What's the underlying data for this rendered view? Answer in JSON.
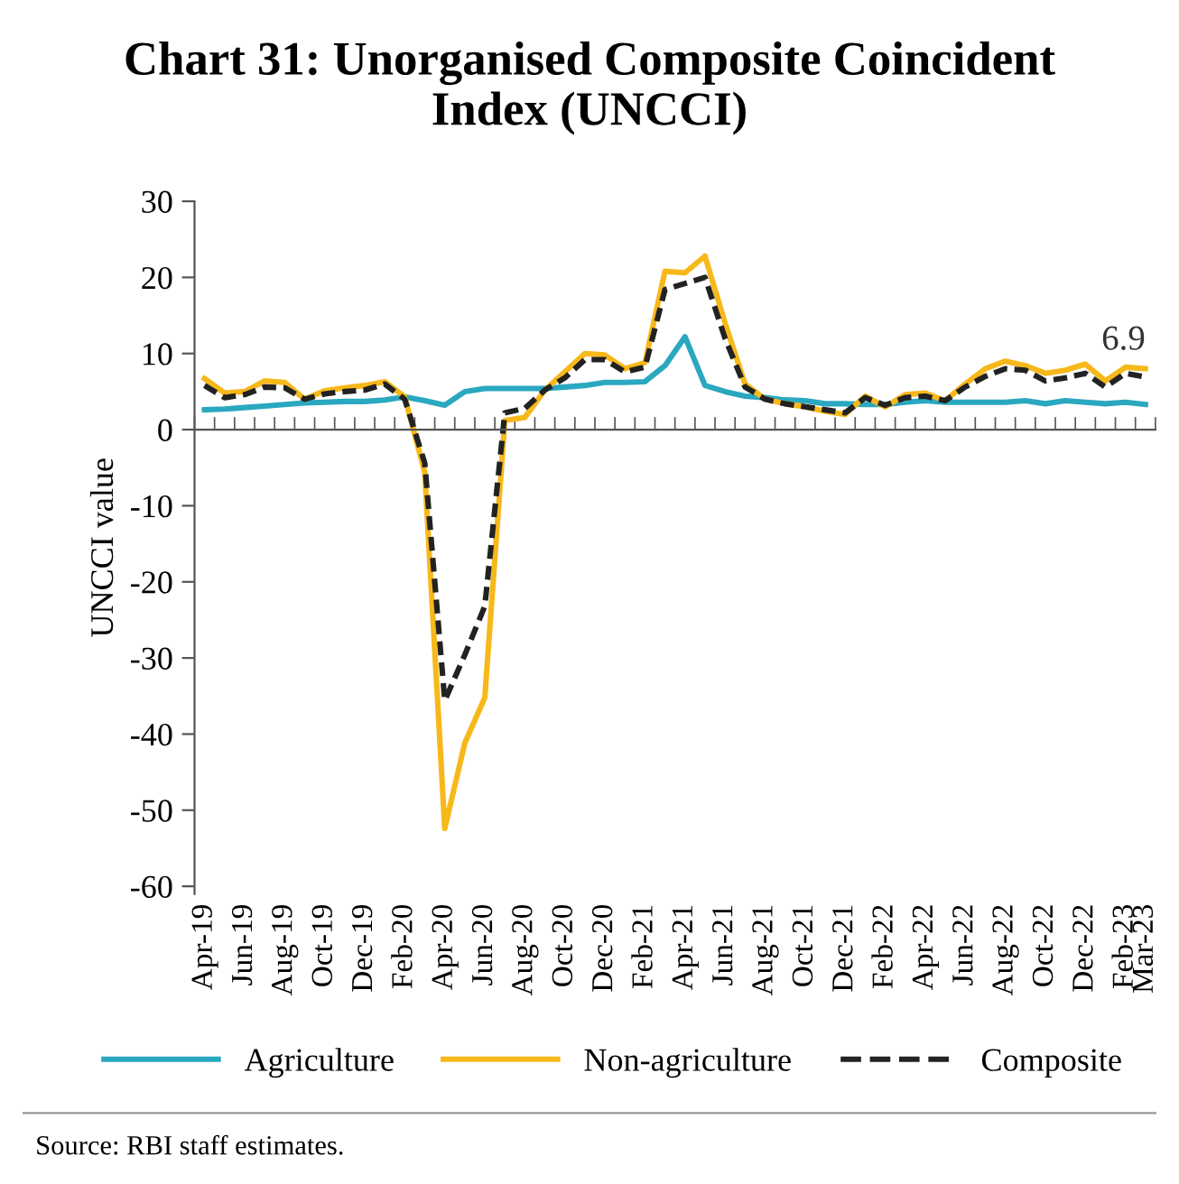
{
  "chart_data": {
    "type": "line",
    "title": "Chart 31: Unorganised Composite Coincident\nIndex (UNCCI)",
    "ylabel": "UNCCI value",
    "categories": [
      "Apr-19",
      null,
      "Jun-19",
      null,
      "Aug-19",
      null,
      "Oct-19",
      null,
      "Dec-19",
      null,
      "Feb-20",
      null,
      "Apr-20",
      null,
      "Jun-20",
      null,
      "Aug-20",
      null,
      "Oct-20",
      null,
      "Dec-20",
      null,
      "Feb-21",
      null,
      "Apr-21",
      null,
      "Jun-21",
      null,
      "Aug-21",
      null,
      "Oct-21",
      null,
      "Dec-21",
      null,
      "Feb-22",
      null,
      "Apr-22",
      null,
      "Jun-22",
      null,
      "Aug-22",
      null,
      "Oct-22",
      null,
      "Dec-22",
      null,
      "Feb-23",
      "Mar-23"
    ],
    "series": [
      {
        "name": "Agriculture",
        "color": "#2aa8c0",
        "line_style": "solid",
        "values": [
          2.6,
          2.7,
          2.9,
          3.1,
          3.3,
          3.5,
          3.6,
          3.7,
          3.7,
          3.9,
          4.3,
          3.8,
          3.2,
          5.0,
          5.4,
          5.4,
          5.4,
          5.4,
          5.6,
          5.8,
          6.2,
          6.2,
          6.3,
          8.4,
          12.2,
          5.8,
          5.0,
          4.4,
          4.2,
          3.9,
          3.8,
          3.4,
          3.4,
          3.3,
          3.3,
          3.6,
          3.8,
          3.6,
          3.6,
          3.6,
          3.6,
          3.8,
          3.4,
          3.8,
          3.6,
          3.4,
          3.6,
          3.3
        ]
      },
      {
        "name": "Non-agriculture",
        "color": "#f7b81a",
        "line_style": "solid",
        "values": [
          6.7,
          4.8,
          5.0,
          6.4,
          6.2,
          4.0,
          5.1,
          5.5,
          5.8,
          6.3,
          4.3,
          -5.6,
          -52.4,
          -41.2,
          -35.2,
          1.2,
          1.6,
          5.2,
          7.6,
          10.0,
          9.8,
          8.0,
          8.8,
          20.8,
          20.6,
          22.8,
          14.0,
          6.0,
          4.0,
          3.4,
          3.0,
          2.4,
          2.0,
          4.4,
          3.0,
          4.6,
          4.8,
          3.8,
          6.0,
          8.0,
          9.0,
          8.4,
          7.4,
          7.8,
          8.6,
          6.4,
          8.2,
          8.0
        ]
      },
      {
        "name": "Composite",
        "color": "#222222",
        "line_style": "dashed",
        "values": [
          5.8,
          4.2,
          4.6,
          5.6,
          5.5,
          4.0,
          4.7,
          5.0,
          5.2,
          6.0,
          4.0,
          -4.4,
          -35.6,
          -29.6,
          -23.2,
          2.2,
          2.8,
          5.2,
          6.8,
          9.2,
          9.2,
          7.6,
          8.2,
          18.4,
          19.2,
          20.0,
          12.0,
          5.6,
          4.0,
          3.4,
          3.0,
          2.6,
          2.2,
          4.2,
          3.2,
          4.2,
          4.4,
          3.8,
          5.6,
          7.0,
          8.0,
          7.8,
          6.4,
          6.8,
          7.4,
          5.6,
          7.4,
          6.9
        ]
      }
    ],
    "ylim": [
      -61,
      30
    ],
    "yticks": [
      -60,
      -50,
      -40,
      -30,
      -20,
      -10,
      0,
      10,
      20,
      30
    ],
    "legend": "bottom",
    "annotations": [
      {
        "text": "6.9",
        "x": "Mar-23",
        "y": 6.9
      },
      "Source: RBI staff estimates."
    ]
  }
}
